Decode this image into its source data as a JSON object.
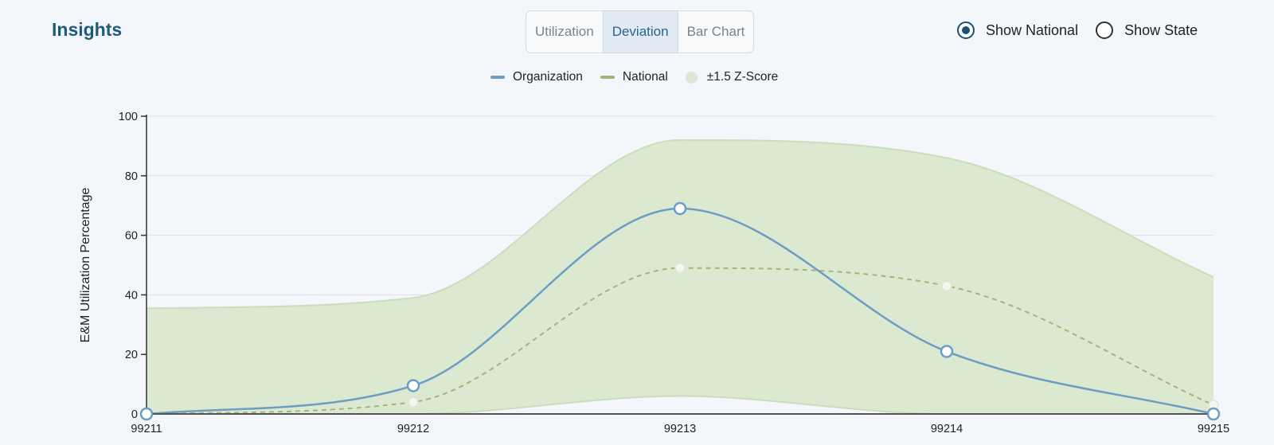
{
  "header": {
    "title": "Insights"
  },
  "tabs": [
    {
      "label": "Utilization",
      "active": false
    },
    {
      "label": "Deviation",
      "active": true
    },
    {
      "label": "Bar Chart",
      "active": false
    }
  ],
  "radios": [
    {
      "label": "Show National",
      "checked": true
    },
    {
      "label": "Show State",
      "checked": false
    }
  ],
  "legend": [
    {
      "label": "Organization",
      "kind": "line",
      "color": "#6c9dc3"
    },
    {
      "label": "National",
      "kind": "line",
      "color": "#a2b27a"
    },
    {
      "label": "±1.5 Z-Score",
      "kind": "dot",
      "color": "#dfe6d4"
    }
  ],
  "colors": {
    "organization": "#6c9dc3",
    "national": "#a4b47a",
    "band_fill": "#dce9d1",
    "band_stroke": "#ccdcbd",
    "grid": "#dde2e6",
    "axis": "#333333"
  },
  "chart_data": {
    "type": "line",
    "ylabel": "E&M Utilization Percentage",
    "xlabel": "",
    "ylim": [
      0,
      100
    ],
    "yticks": [
      0,
      20,
      40,
      60,
      80,
      100
    ],
    "categories": [
      "99211",
      "99212",
      "99213",
      "99214",
      "99215"
    ],
    "series": [
      {
        "name": "Organization",
        "values": [
          0,
          9.5,
          69,
          21,
          0
        ]
      },
      {
        "name": "National",
        "values": [
          0,
          4,
          49,
          43,
          3
        ]
      }
    ],
    "band": {
      "name": "±1.5 Z-Score",
      "upper": [
        35.5,
        39,
        92,
        86,
        46
      ],
      "lower": [
        0,
        0,
        6,
        0,
        0
      ]
    },
    "grid": true,
    "legend_position": "top-center"
  }
}
